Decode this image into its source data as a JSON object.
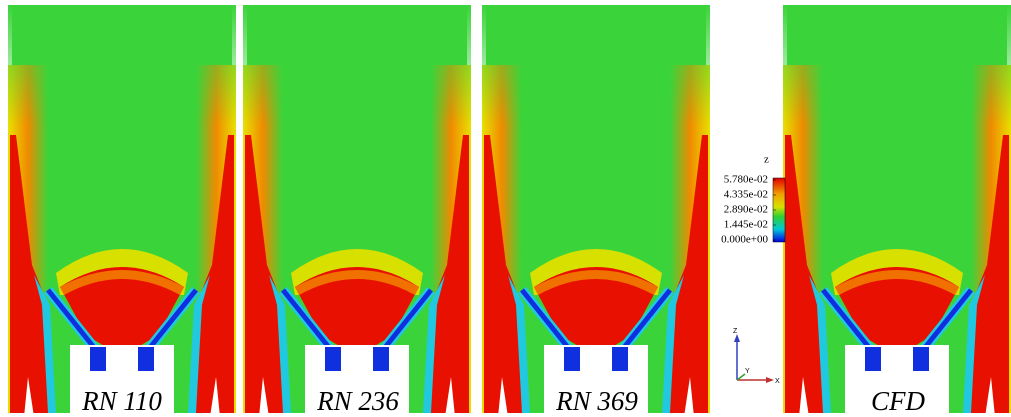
{
  "panels": [
    {
      "label": "RN 110"
    },
    {
      "label": "RN 236"
    },
    {
      "label": "RN 369"
    },
    {
      "label": "CFD"
    }
  ],
  "colorbar": {
    "title": "z",
    "ticks": [
      {
        "value": 0.0578,
        "label": "5.780e-02"
      },
      {
        "value": 0.04335,
        "label": "4.335e-02"
      },
      {
        "value": 0.0289,
        "label": "2.890e-02"
      },
      {
        "value": 0.01445,
        "label": "1.445e-02"
      },
      {
        "value": 0,
        "label": "0.000e+00"
      }
    ]
  },
  "axes_triad": {
    "z": "Z",
    "y": "Y",
    "x": "X"
  }
}
